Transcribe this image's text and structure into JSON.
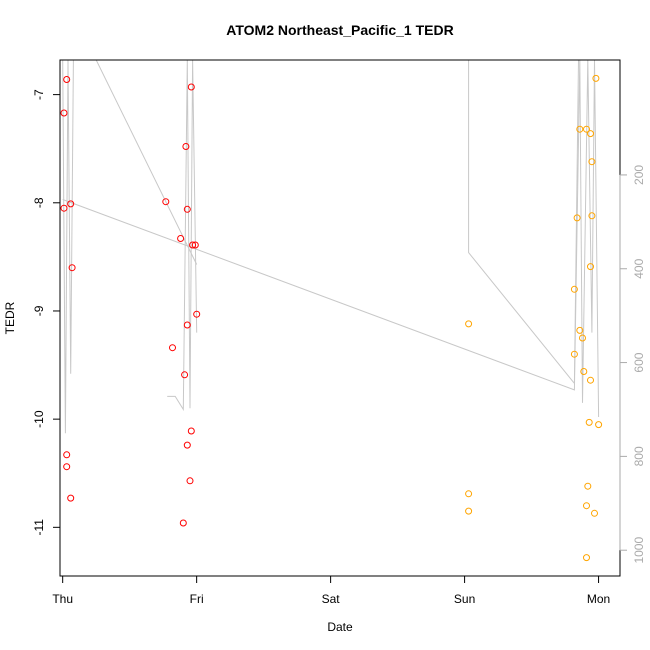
{
  "chart_data": {
    "type": "scatter",
    "title": "ATOM2 Northeast_Pacific_1 TEDR",
    "xlabel": "Date",
    "ylabel": "TEDR",
    "xlim": [
      -0.02,
      4.16
    ],
    "ylim": [
      -11.45,
      -6.68
    ],
    "x_ticks": [
      {
        "label": "Thu",
        "value": 0
      },
      {
        "label": "Fri",
        "value": 1
      },
      {
        "label": "Sat",
        "value": 2
      },
      {
        "label": "Sun",
        "value": 3
      },
      {
        "label": "Mon",
        "value": 4
      }
    ],
    "y_ticks": [
      -11,
      -10,
      -9,
      -8,
      -7
    ],
    "secondary_axis": {
      "side": "right",
      "ticks": [
        200,
        400,
        600,
        800,
        1000
      ],
      "lim": [
        -45,
        1055
      ],
      "color": "#aaaaaa"
    },
    "colors": {
      "series_1": "#ff0000",
      "series_2": "#ffa500",
      "track": "#c8c8c8"
    },
    "grid": false,
    "series": [
      {
        "color": "#ff0000",
        "points": [
          [
            0.01,
            -7.17
          ],
          [
            0.01,
            -8.05
          ],
          [
            0.03,
            -6.86
          ],
          [
            0.06,
            -8.01
          ],
          [
            0.07,
            -8.6
          ],
          [
            0.03,
            -10.33
          ],
          [
            0.03,
            -10.44
          ],
          [
            0.06,
            -10.73
          ],
          [
            0.77,
            -7.99
          ],
          [
            0.88,
            -8.33
          ],
          [
            0.92,
            -7.48
          ],
          [
            0.93,
            -8.06
          ],
          [
            0.96,
            -6.93
          ],
          [
            0.97,
            -8.39
          ],
          [
            0.99,
            -8.39
          ],
          [
            0.82,
            -9.34
          ],
          [
            0.91,
            -9.59
          ],
          [
            0.93,
            -9.13
          ],
          [
            1.0,
            -9.03
          ],
          [
            0.96,
            -10.11
          ],
          [
            0.93,
            -10.24
          ],
          [
            0.95,
            -10.57
          ],
          [
            0.9,
            -10.96
          ]
        ]
      },
      {
        "color": "#ffa500",
        "points": [
          [
            3.03,
            -9.12
          ],
          [
            3.03,
            -10.69
          ],
          [
            3.03,
            -10.85
          ],
          [
            3.82,
            -8.8
          ],
          [
            3.84,
            -8.14
          ],
          [
            3.86,
            -7.32
          ],
          [
            3.91,
            -7.32
          ],
          [
            3.94,
            -7.36
          ],
          [
            3.95,
            -7.62
          ],
          [
            3.95,
            -8.12
          ],
          [
            3.94,
            -8.59
          ],
          [
            3.98,
            -6.85
          ],
          [
            3.82,
            -9.4
          ],
          [
            3.86,
            -9.18
          ],
          [
            3.88,
            -9.25
          ],
          [
            3.89,
            -9.56
          ],
          [
            3.94,
            -9.64
          ],
          [
            3.93,
            -10.03
          ],
          [
            3.92,
            -10.62
          ],
          [
            3.91,
            -10.8
          ],
          [
            3.97,
            -10.87
          ],
          [
            3.91,
            -11.28
          ],
          [
            4.0,
            -10.05
          ]
        ]
      }
    ],
    "depth_track": [
      [
        [
          0.0,
          -6.68
        ],
        [
          0.02,
          -10.13
        ],
        [
          0.04,
          -6.68
        ],
        [
          0.06,
          -9.58
        ],
        [
          0.08,
          -6.68
        ],
        [
          0.25,
          -6.68
        ],
        [
          1.0,
          -8.57
        ]
      ],
      [
        [
          0.0,
          -7.97
        ],
        [
          3.82,
          -9.73
        ],
        [
          3.86,
          -6.68
        ],
        [
          3.88,
          -9.85
        ],
        [
          3.92,
          -6.68
        ],
        [
          3.95,
          -9.2
        ],
        [
          3.97,
          -6.68
        ],
        [
          4.0,
          -9.98
        ]
      ],
      [
        [
          0.78,
          -9.79
        ],
        [
          0.84,
          -9.79
        ],
        [
          0.9,
          -9.91
        ],
        [
          0.93,
          -6.68
        ],
        [
          0.95,
          -9.9
        ],
        [
          0.97,
          -6.68
        ],
        [
          1.0,
          -9.2
        ]
      ],
      [
        [
          3.03,
          -6.68
        ],
        [
          3.03,
          -8.46
        ],
        [
          3.82,
          -9.67
        ],
        [
          3.85,
          -6.68
        ]
      ]
    ]
  }
}
